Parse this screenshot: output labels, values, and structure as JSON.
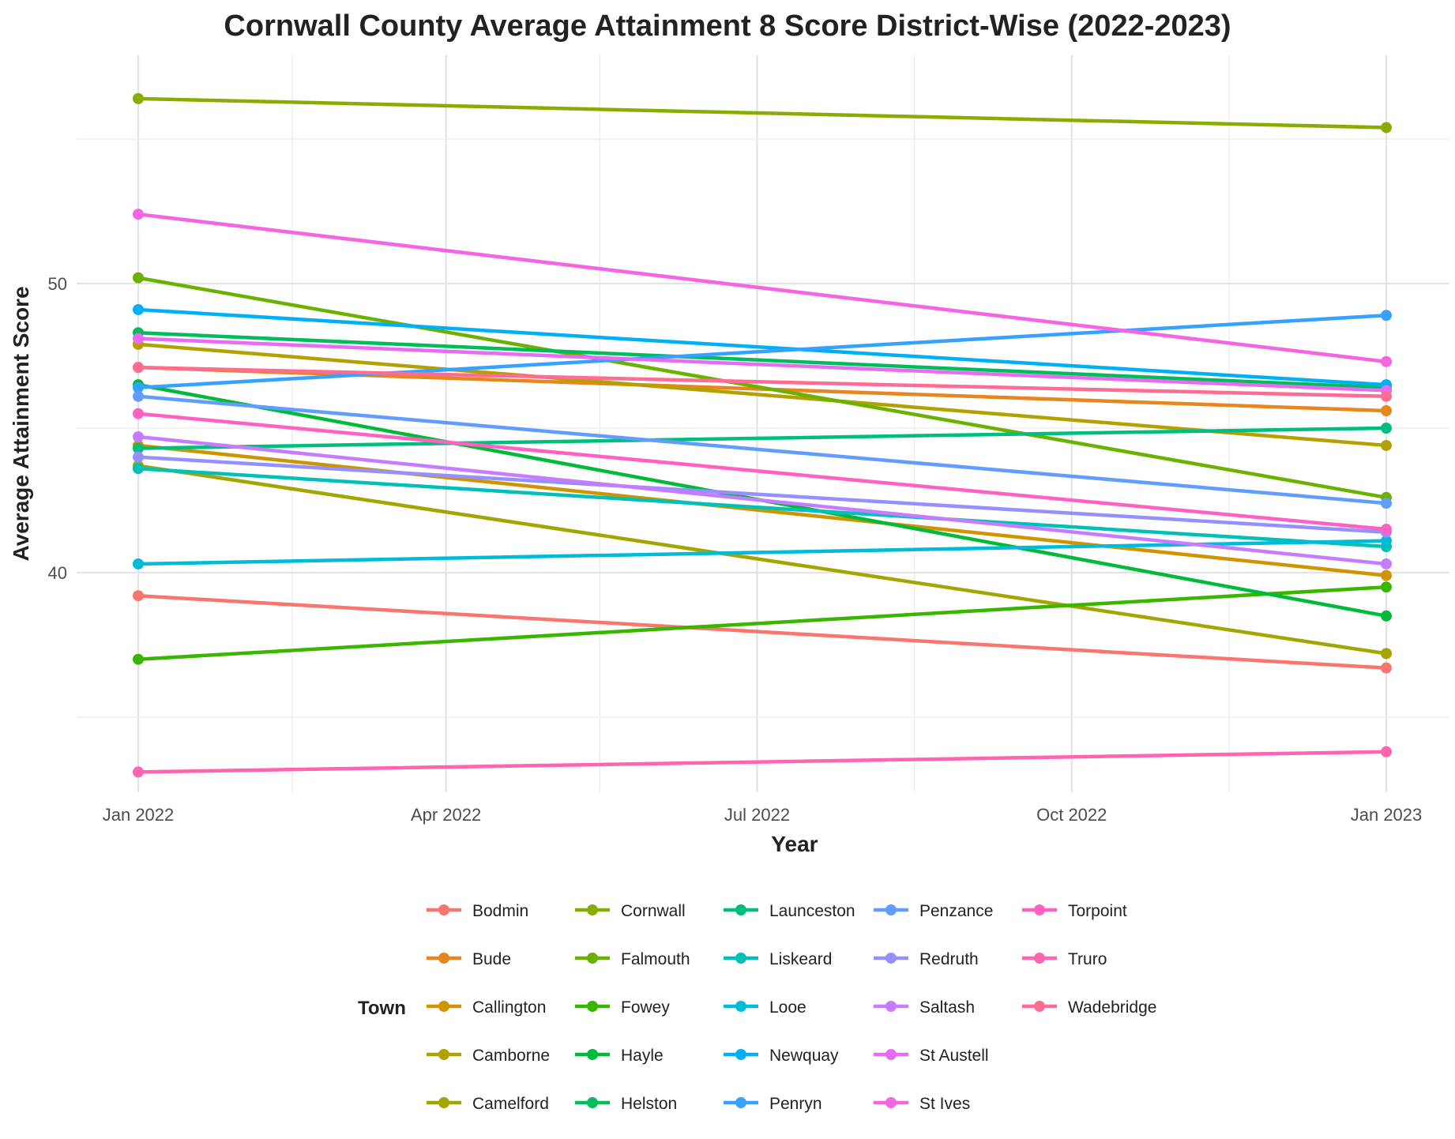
{
  "chart_data": {
    "type": "line",
    "title": "Cornwall County Average Attainment 8 Score District-Wise (2022-2023)",
    "xlabel": "Year",
    "ylabel": "Average Attainment Score",
    "x": [
      "2022-01-01",
      "2023-01-01"
    ],
    "x_ticks": [
      "Jan 2022",
      "Apr 2022",
      "Jul 2022",
      "Oct 2022",
      "Jan 2023"
    ],
    "y_ticks": [
      40,
      50
    ],
    "ylim": [
      32.4,
      57.9
    ],
    "grid": true,
    "legend": {
      "title": "Town",
      "position": "bottom"
    },
    "series": [
      {
        "name": "Bodmin",
        "color": "#F8766D",
        "values": [
          39.2,
          36.7
        ]
      },
      {
        "name": "Bude",
        "color": "#E7851E",
        "values": [
          47.1,
          45.6
        ]
      },
      {
        "name": "Callington",
        "color": "#D09400",
        "values": [
          44.4,
          39.9
        ]
      },
      {
        "name": "Camborne",
        "color": "#B2A100",
        "values": [
          47.9,
          44.4
        ]
      },
      {
        "name": "Camelford",
        "color": "#A3A500",
        "values": [
          43.7,
          37.2
        ]
      },
      {
        "name": "Cornwall",
        "color": "#89AC00",
        "values": [
          56.4,
          55.4
        ]
      },
      {
        "name": "Falmouth",
        "color": "#6BB100",
        "values": [
          50.2,
          42.6
        ]
      },
      {
        "name": "Fowey",
        "color": "#39B600",
        "values": [
          37.0,
          39.5
        ]
      },
      {
        "name": "Hayle",
        "color": "#00BA38",
        "values": [
          46.5,
          38.5
        ]
      },
      {
        "name": "Helston",
        "color": "#00BD5C",
        "values": [
          48.3,
          46.4
        ]
      },
      {
        "name": "Launceston",
        "color": "#00BF7D",
        "values": [
          44.3,
          45.0
        ]
      },
      {
        "name": "Liskeard",
        "color": "#00C0B8",
        "values": [
          43.6,
          40.9
        ]
      },
      {
        "name": "Looe",
        "color": "#00BCD8",
        "values": [
          40.3,
          41.1
        ]
      },
      {
        "name": "Newquay",
        "color": "#00B0F6",
        "values": [
          49.1,
          46.5
        ]
      },
      {
        "name": "Penryn",
        "color": "#35A2FF",
        "values": [
          46.4,
          48.9
        ]
      },
      {
        "name": "Penzance",
        "color": "#619CFF",
        "values": [
          46.1,
          42.4
        ]
      },
      {
        "name": "Redruth",
        "color": "#9590FF",
        "values": [
          44.0,
          41.4
        ]
      },
      {
        "name": "Saltash",
        "color": "#C77CFF",
        "values": [
          44.7,
          40.3
        ]
      },
      {
        "name": "St Austell",
        "color": "#E76BF3",
        "values": [
          48.1,
          46.3
        ]
      },
      {
        "name": "St Ives",
        "color": "#F564E3",
        "values": [
          52.4,
          47.3
        ]
      },
      {
        "name": "Torpoint",
        "color": "#FF61C3",
        "values": [
          45.5,
          41.5
        ]
      },
      {
        "name": "Truro",
        "color": "#FF64B0",
        "values": [
          33.1,
          33.8
        ]
      },
      {
        "name": "Wadebridge",
        "color": "#FF6C91",
        "values": [
          47.1,
          46.1
        ]
      }
    ]
  }
}
